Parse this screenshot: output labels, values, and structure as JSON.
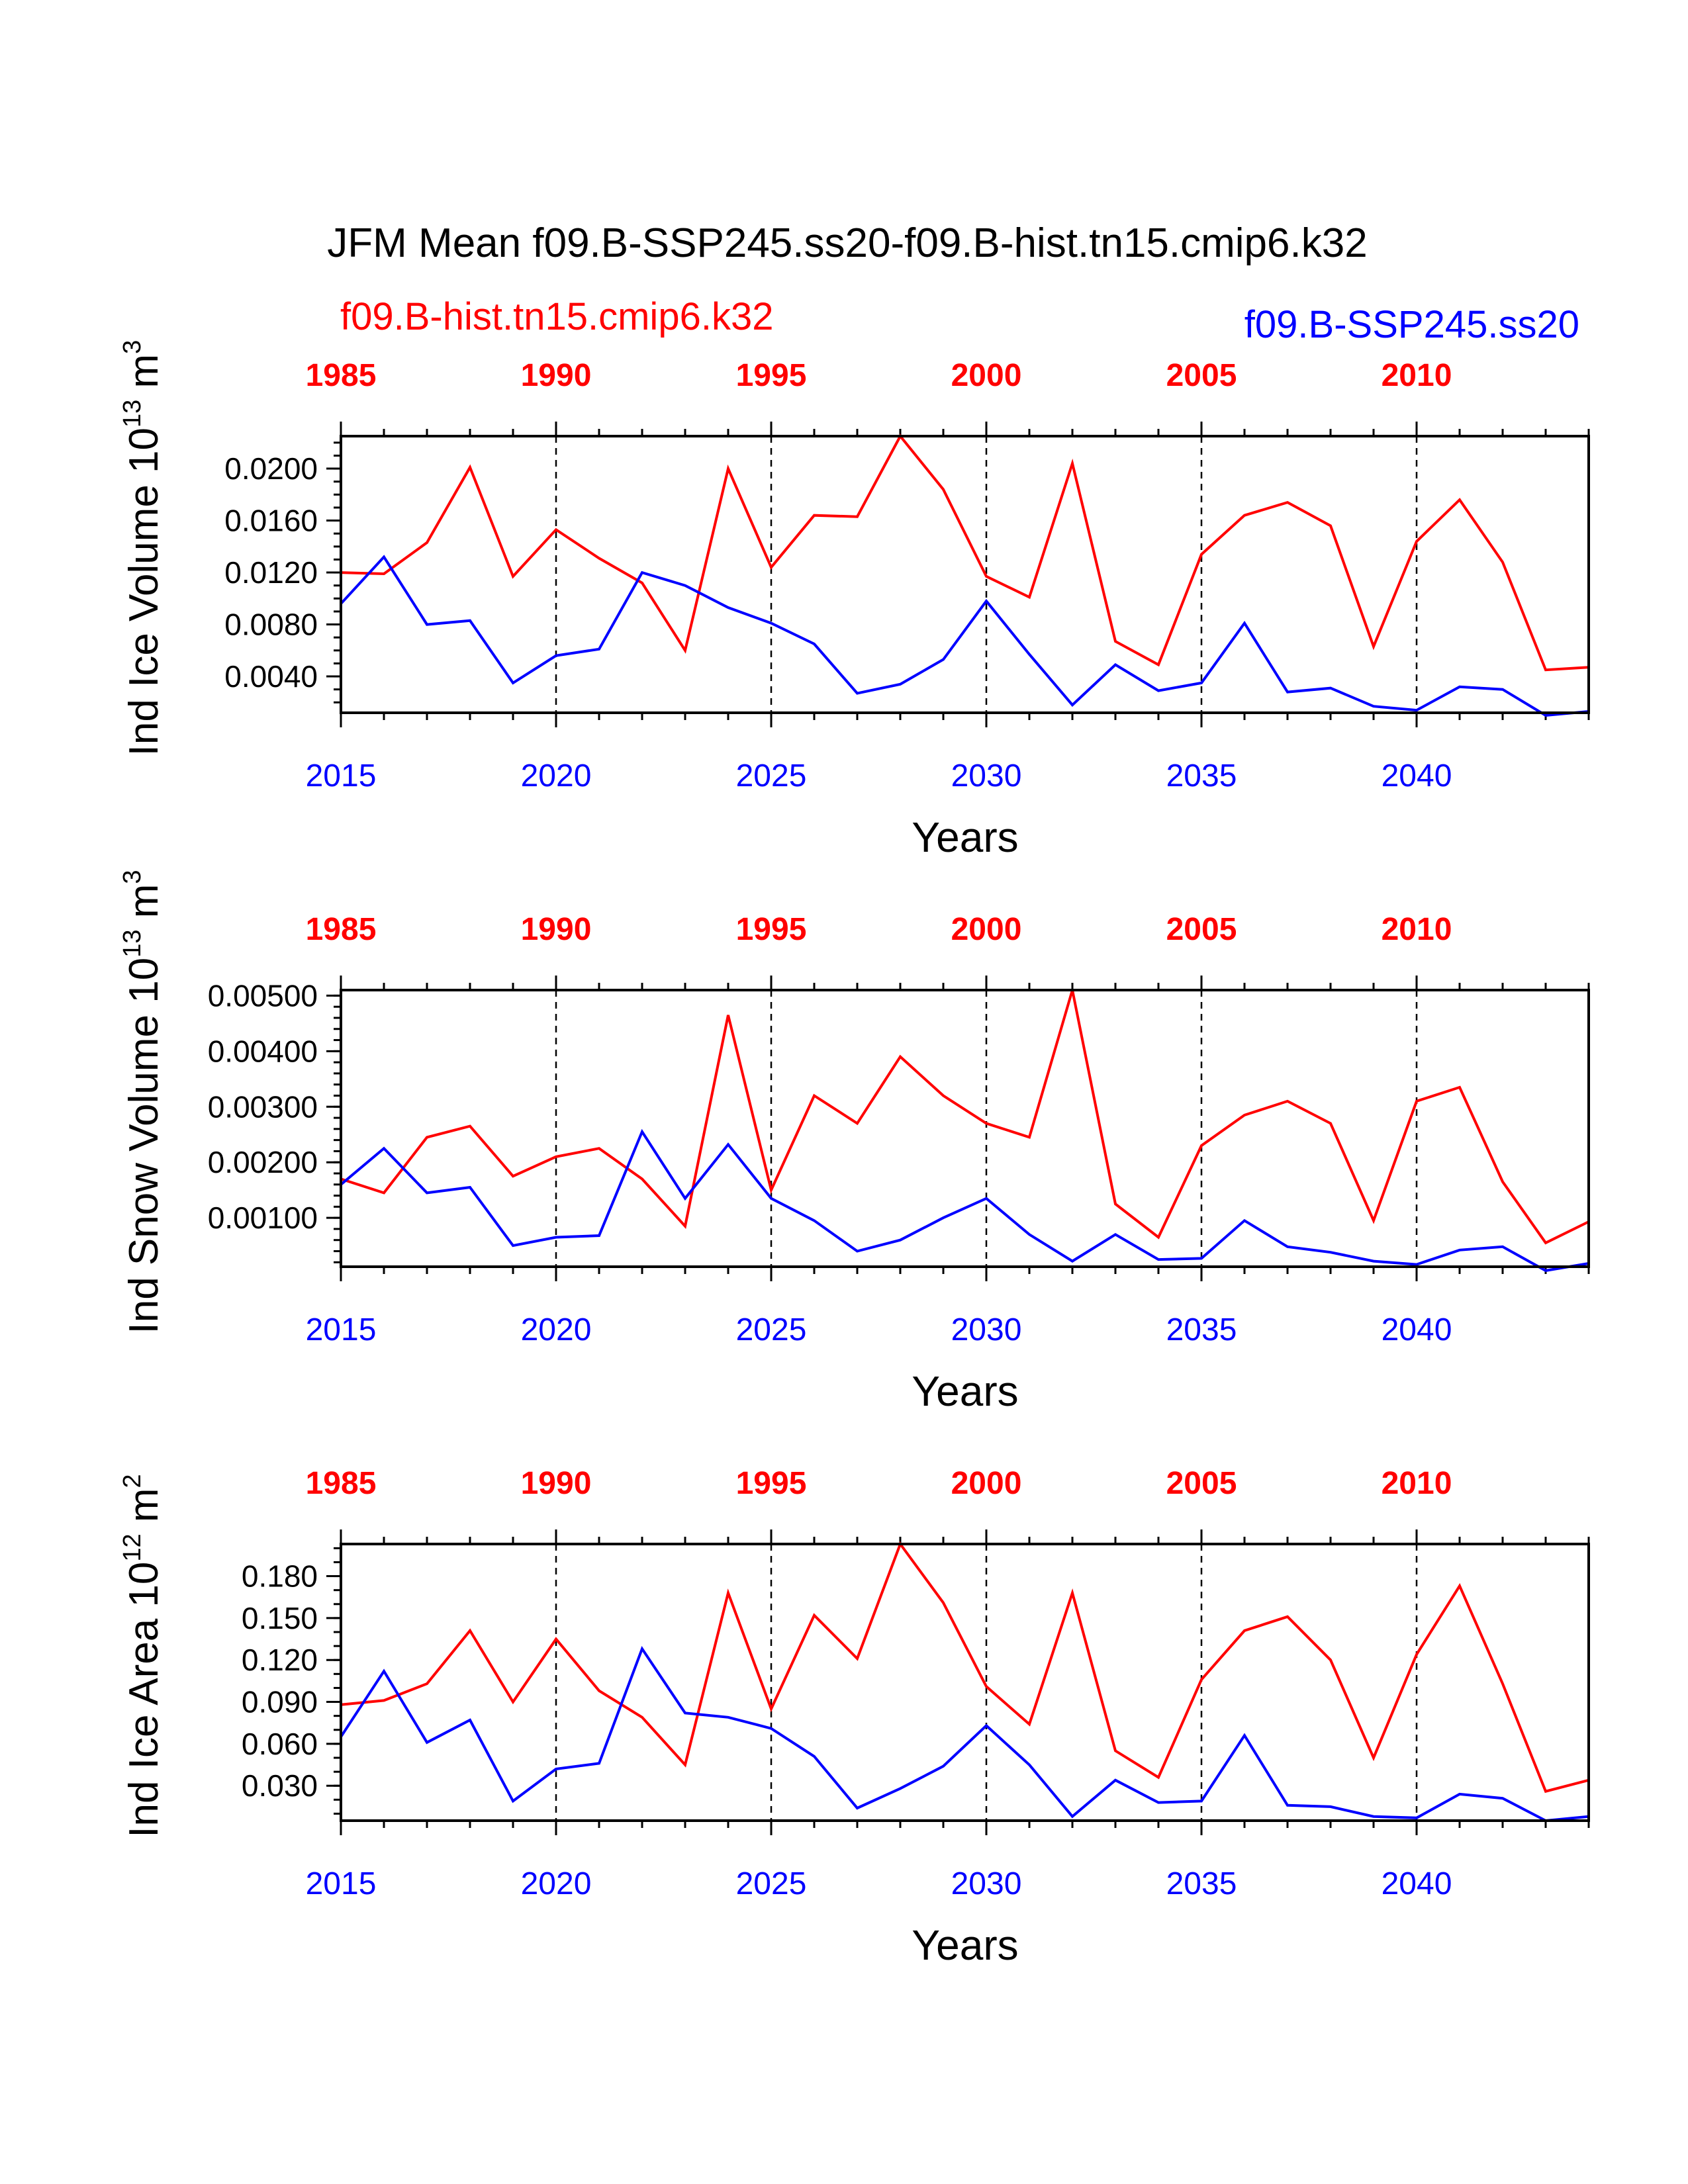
{
  "title": "JFM Mean f09.B-SSP245.ss20-f09.B-hist.tn15.cmip6.k32",
  "case_labels": {
    "historical": "f09.B-hist.tn15.cmip6.k32",
    "scenario": "f09.B-SSP245.ss20"
  },
  "colors": {
    "historical": "#ff0000",
    "scenario": "#0000ff",
    "axis": "#000000"
  },
  "chart_data": [
    {
      "type": "line",
      "title": "",
      "ylabel": "Ind Ice Volume 10",
      "ylabel_exp": "13",
      "ylabel_unit": " m",
      "ylabel_unit_exp": "3",
      "xlabel": "Years",
      "xlim": [
        2015,
        2044
      ],
      "ylim": [
        0.0012,
        0.0225
      ],
      "ytick_values": [
        0.004,
        0.008,
        0.012,
        0.016,
        0.02
      ],
      "ytick_labels": [
        "0.0040",
        "0.0080",
        "0.0120",
        "0.0160",
        "0.0200"
      ],
      "yminor_step": 0.001,
      "bottom_ticks": [
        "2015",
        "2020",
        "2025",
        "2030",
        "2035",
        "2040"
      ],
      "top_ticks": [
        "1985",
        "1990",
        "1995",
        "2000",
        "2005",
        "2010"
      ],
      "vlines_at": [
        2020,
        2025,
        2030,
        2035,
        2040
      ],
      "grid": "dashed vertical lines at labeled years",
      "series": [
        {
          "name": "f09.B-hist.tn15.cmip6.k32",
          "axis": "top",
          "color": "#ff0000",
          "x": [
            2015,
            2016,
            2017,
            2018,
            2019,
            2020,
            2021,
            2022,
            2023,
            2024,
            2025,
            2026,
            2027,
            2028,
            2029,
            2030,
            2031,
            2032,
            2033,
            2034,
            2035,
            2036,
            2037,
            2038,
            2039,
            2040,
            2041,
            2042,
            2043,
            2044
          ],
          "values": [
            0.012,
            0.0119,
            0.0143,
            0.0201,
            0.0117,
            0.0153,
            0.0131,
            0.0112,
            0.006,
            0.02,
            0.0124,
            0.0164,
            0.0163,
            0.0225,
            0.0184,
            0.0117,
            0.0101,
            0.0204,
            0.0067,
            0.0049,
            0.0134,
            0.0164,
            0.0174,
            0.0156,
            0.0063,
            0.0144,
            0.0176,
            0.0128,
            0.0045,
            0.0047
          ]
        },
        {
          "name": "f09.B-SSP245.ss20",
          "axis": "bottom",
          "color": "#0000ff",
          "x": [
            2015,
            2016,
            2017,
            2018,
            2019,
            2020,
            2021,
            2022,
            2023,
            2024,
            2025,
            2026,
            2027,
            2028,
            2029,
            2030,
            2031,
            2032,
            2033,
            2034,
            2035,
            2036,
            2037,
            2038,
            2039,
            2040,
            2041,
            2042,
            2043,
            2044
          ],
          "values": [
            0.0096,
            0.0132,
            0.008,
            0.0083,
            0.0035,
            0.0056,
            0.0061,
            0.012,
            0.011,
            0.0093,
            0.0081,
            0.0065,
            0.0027,
            0.0034,
            0.0053,
            0.0098,
            0.0057,
            0.0018,
            0.0049,
            0.0029,
            0.0035,
            0.0081,
            0.0028,
            0.0031,
            0.0017,
            0.0014,
            0.0032,
            0.003,
            0.001,
            0.0013
          ]
        }
      ]
    },
    {
      "type": "line",
      "title": "",
      "ylabel": "Ind Snow Volume 10",
      "ylabel_exp": "13",
      "ylabel_unit": " m",
      "ylabel_unit_exp": "3",
      "xlabel": "Years",
      "xlim": [
        2015,
        2044
      ],
      "ylim": [
        0.00012,
        0.0051
      ],
      "ytick_values": [
        0.001,
        0.002,
        0.003,
        0.004,
        0.005
      ],
      "ytick_labels": [
        "0.00100",
        "0.00200",
        "0.00300",
        "0.00400",
        "0.00500"
      ],
      "yminor_step": 0.0002,
      "bottom_ticks": [
        "2015",
        "2020",
        "2025",
        "2030",
        "2035",
        "2040"
      ],
      "top_ticks": [
        "1985",
        "1990",
        "1995",
        "2000",
        "2005",
        "2010"
      ],
      "vlines_at": [
        2020,
        2025,
        2030,
        2035,
        2040
      ],
      "grid": "dashed vertical lines at labeled years",
      "series": [
        {
          "name": "f09.B-hist.tn15.cmip6.k32",
          "axis": "top",
          "color": "#ff0000",
          "x": [
            2015,
            2016,
            2017,
            2018,
            2019,
            2020,
            2021,
            2022,
            2023,
            2024,
            2025,
            2026,
            2027,
            2028,
            2029,
            2030,
            2031,
            2032,
            2033,
            2034,
            2035,
            2036,
            2037,
            2038,
            2039,
            2040,
            2041,
            2042,
            2043,
            2044
          ],
          "values": [
            0.0017,
            0.00145,
            0.00245,
            0.00265,
            0.00175,
            0.0021,
            0.00225,
            0.0017,
            0.00085,
            0.00465,
            0.0015,
            0.0032,
            0.0027,
            0.0039,
            0.0032,
            0.0027,
            0.00245,
            0.0051,
            0.00125,
            0.00065,
            0.0023,
            0.00285,
            0.0031,
            0.0027,
            0.00095,
            0.0031,
            0.00335,
            0.00165,
            0.00055,
            0.00093
          ]
        },
        {
          "name": "f09.B-SSP245.ss20",
          "axis": "bottom",
          "color": "#0000ff",
          "x": [
            2015,
            2016,
            2017,
            2018,
            2019,
            2020,
            2021,
            2022,
            2023,
            2024,
            2025,
            2026,
            2027,
            2028,
            2029,
            2030,
            2031,
            2032,
            2033,
            2034,
            2035,
            2036,
            2037,
            2038,
            2039,
            2040,
            2041,
            2042,
            2043,
            2044
          ],
          "values": [
            0.0016,
            0.00225,
            0.00145,
            0.00155,
            0.0005,
            0.00065,
            0.00068,
            0.00255,
            0.00135,
            0.00232,
            0.00135,
            0.00095,
            0.0004,
            0.0006,
            0.001,
            0.00135,
            0.0007,
            0.00022,
            0.0007,
            0.00025,
            0.00027,
            0.00095,
            0.00048,
            0.00038,
            0.00022,
            0.00016,
            0.00042,
            0.00048,
            5e-05,
            0.00018
          ]
        }
      ]
    },
    {
      "type": "line",
      "title": "",
      "ylabel": "Ind Ice Area 10",
      "ylabel_exp": "12",
      "ylabel_unit": " m",
      "ylabel_unit_exp": "2",
      "xlabel": "Years",
      "xlim": [
        2015,
        2044
      ],
      "ylim": [
        0.005,
        0.203
      ],
      "ytick_values": [
        0.03,
        0.06,
        0.09,
        0.12,
        0.15,
        0.18
      ],
      "ytick_labels": [
        "0.030",
        "0.060",
        "0.090",
        "0.120",
        "0.150",
        "0.180"
      ],
      "yminor_step": 0.01,
      "bottom_ticks": [
        "2015",
        "2020",
        "2025",
        "2030",
        "2035",
        "2040"
      ],
      "top_ticks": [
        "1985",
        "1990",
        "1995",
        "2000",
        "2005",
        "2010"
      ],
      "vlines_at": [
        2020,
        2025,
        2030,
        2035,
        2040
      ],
      "grid": "dashed vertical lines at labeled years",
      "series": [
        {
          "name": "f09.B-hist.tn15.cmip6.k32",
          "axis": "top",
          "color": "#ff0000",
          "x": [
            2015,
            2016,
            2017,
            2018,
            2019,
            2020,
            2021,
            2022,
            2023,
            2024,
            2025,
            2026,
            2027,
            2028,
            2029,
            2030,
            2031,
            2032,
            2033,
            2034,
            2035,
            2036,
            2037,
            2038,
            2039,
            2040,
            2041,
            2042,
            2043,
            2044
          ],
          "values": [
            0.088,
            0.091,
            0.103,
            0.141,
            0.09,
            0.135,
            0.098,
            0.079,
            0.045,
            0.168,
            0.085,
            0.152,
            0.121,
            0.203,
            0.161,
            0.101,
            0.074,
            0.168,
            0.055,
            0.036,
            0.106,
            0.141,
            0.151,
            0.12,
            0.05,
            0.124,
            0.173,
            0.103,
            0.026,
            0.034
          ]
        },
        {
          "name": "f09.B-SSP245.ss20",
          "axis": "bottom",
          "color": "#0000ff",
          "x": [
            2015,
            2016,
            2017,
            2018,
            2019,
            2020,
            2021,
            2022,
            2023,
            2024,
            2025,
            2026,
            2027,
            2028,
            2029,
            2030,
            2031,
            2032,
            2033,
            2034,
            2035,
            2036,
            2037,
            2038,
            2039,
            2040,
            2041,
            2042,
            2043,
            2044
          ],
          "values": [
            0.065,
            0.112,
            0.061,
            0.077,
            0.019,
            0.042,
            0.046,
            0.128,
            0.082,
            0.079,
            0.071,
            0.051,
            0.014,
            0.028,
            0.044,
            0.073,
            0.045,
            0.008,
            0.034,
            0.018,
            0.019,
            0.066,
            0.016,
            0.015,
            0.008,
            0.007,
            0.024,
            0.021,
            0.005,
            0.008
          ]
        }
      ]
    }
  ]
}
